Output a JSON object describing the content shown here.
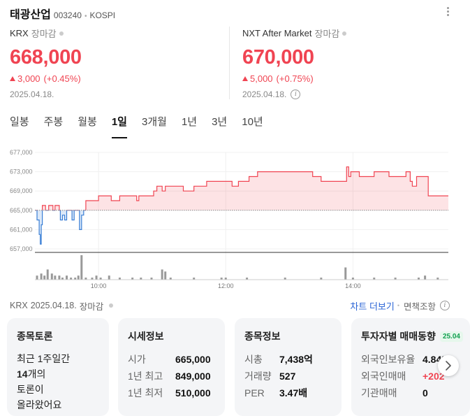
{
  "header": {
    "name": "태광산업",
    "code": "003240",
    "market": "KOSPI",
    "more_icon": "more-vertical-icon"
  },
  "krx": {
    "label": "KRX",
    "status": "장마감",
    "price": "668,000",
    "change": "3,000",
    "change_pct": "(+0.45%)",
    "date": "2025.04.18."
  },
  "nxt": {
    "label": "NXT After Market",
    "status": "장마감",
    "price": "670,000",
    "change": "5,000",
    "change_pct": "(+0.75%)",
    "date": "2025.04.18.",
    "info_icon": "i"
  },
  "tabs": [
    {
      "label": "일봉"
    },
    {
      "label": "주봉"
    },
    {
      "label": "월봉"
    },
    {
      "label": "1일",
      "active": true
    },
    {
      "label": "3개월"
    },
    {
      "label": "1년"
    },
    {
      "label": "3년"
    },
    {
      "label": "10년"
    }
  ],
  "colors": {
    "up": "#f04452",
    "down": "#3a7fd6",
    "link": "#2a64d6"
  },
  "chart_data": {
    "type": "line",
    "y_ticks": [
      "677,000",
      "673,000",
      "669,000",
      "665,000",
      "661,000",
      "657,000"
    ],
    "ylim": [
      657000,
      677000
    ],
    "baseline": 665000,
    "x_ticks": [
      "10:00",
      "12:00",
      "14:00"
    ],
    "x_tick_minutes": [
      60,
      180,
      300
    ],
    "session_minutes": [
      0,
      390
    ],
    "price_series": [
      [
        0,
        665000
      ],
      [
        2,
        663000
      ],
      [
        4,
        660000
      ],
      [
        5,
        658000
      ],
      [
        6,
        662000
      ],
      [
        7,
        666000
      ],
      [
        9,
        666000
      ],
      [
        10,
        665000
      ],
      [
        12,
        665000
      ],
      [
        13,
        666000
      ],
      [
        16,
        666000
      ],
      [
        17,
        665000
      ],
      [
        19,
        666000
      ],
      [
        22,
        666000
      ],
      [
        23,
        665000
      ],
      [
        24,
        663000
      ],
      [
        26,
        664000
      ],
      [
        28,
        663000
      ],
      [
        30,
        665000
      ],
      [
        33,
        665000
      ],
      [
        35,
        663000
      ],
      [
        37,
        665000
      ],
      [
        40,
        665000
      ],
      [
        42,
        661000
      ],
      [
        44,
        664000
      ],
      [
        46,
        665000
      ],
      [
        48,
        667000
      ],
      [
        56,
        667000
      ],
      [
        60,
        668000
      ],
      [
        68,
        668000
      ],
      [
        72,
        667000
      ],
      [
        78,
        667000
      ],
      [
        80,
        668000
      ],
      [
        95,
        668000
      ],
      [
        96,
        667000
      ],
      [
        98,
        668000
      ],
      [
        110,
        668000
      ],
      [
        112,
        669000
      ],
      [
        115,
        670000
      ],
      [
        120,
        669000
      ],
      [
        123,
        670000
      ],
      [
        138,
        670000
      ],
      [
        140,
        669000
      ],
      [
        148,
        669000
      ],
      [
        150,
        670000
      ],
      [
        160,
        670000
      ],
      [
        162,
        671000
      ],
      [
        185,
        671000
      ],
      [
        186,
        670000
      ],
      [
        190,
        670000
      ],
      [
        192,
        671000
      ],
      [
        200,
        671000
      ],
      [
        202,
        672000
      ],
      [
        208,
        672000
      ],
      [
        210,
        673000
      ],
      [
        260,
        673000
      ],
      [
        262,
        672000
      ],
      [
        268,
        672000
      ],
      [
        270,
        671000
      ],
      [
        292,
        671000
      ],
      [
        294,
        674000
      ],
      [
        296,
        672000
      ],
      [
        298,
        673000
      ],
      [
        303,
        673000
      ],
      [
        306,
        672000
      ],
      [
        318,
        672000
      ],
      [
        320,
        673000
      ],
      [
        332,
        673000
      ],
      [
        334,
        672000
      ],
      [
        347,
        672000
      ],
      [
        350,
        673000
      ],
      [
        354,
        671000
      ],
      [
        356,
        670000
      ],
      [
        360,
        672000
      ],
      [
        369,
        672000
      ],
      [
        371,
        668000
      ],
      [
        390,
        668000
      ]
    ],
    "volume_bars": [
      [
        2,
        2
      ],
      [
        6,
        3
      ],
      [
        9,
        2
      ],
      [
        12,
        5
      ],
      [
        16,
        3
      ],
      [
        19,
        2
      ],
      [
        23,
        2
      ],
      [
        26,
        1
      ],
      [
        30,
        2
      ],
      [
        34,
        1
      ],
      [
        38,
        1
      ],
      [
        41,
        2
      ],
      [
        44,
        12
      ],
      [
        48,
        1
      ],
      [
        54,
        1
      ],
      [
        58,
        2
      ],
      [
        62,
        1
      ],
      [
        70,
        2
      ],
      [
        80,
        1
      ],
      [
        92,
        1
      ],
      [
        100,
        1
      ],
      [
        110,
        1
      ],
      [
        120,
        5
      ],
      [
        123,
        4
      ],
      [
        128,
        1
      ],
      [
        150,
        1
      ],
      [
        176,
        1
      ],
      [
        180,
        1
      ],
      [
        200,
        1
      ],
      [
        236,
        1
      ],
      [
        270,
        1
      ],
      [
        293,
        6
      ],
      [
        300,
        1
      ],
      [
        320,
        1
      ],
      [
        340,
        1
      ],
      [
        362,
        1
      ],
      [
        368,
        2
      ],
      [
        380,
        1
      ]
    ],
    "volume_max": 12
  },
  "footer": {
    "market": "KRX",
    "date": "2025.04.18.",
    "status": "장마감",
    "more_chart": "차트 더보기",
    "disclaimer": "면책조항"
  },
  "cards": {
    "discussion": {
      "title": "종목토론",
      "line1": "최근 1주일간",
      "count": "14개의",
      "line3": "토론이",
      "line4": "올라왔어요"
    },
    "quote": {
      "title": "시세정보",
      "rows": [
        {
          "label": "시가",
          "value": "665,000"
        },
        {
          "label": "1년 최고",
          "value": "849,000"
        },
        {
          "label": "1년 최저",
          "value": "510,000"
        }
      ]
    },
    "info": {
      "title": "종목정보",
      "rows": [
        {
          "label": "시총",
          "value": "7,438억"
        },
        {
          "label": "거래량",
          "value": "527"
        },
        {
          "label": "PER",
          "value": "3.47배"
        }
      ]
    },
    "investor": {
      "title": "투자자별 매매동향",
      "badge": "25.04",
      "rows": [
        {
          "label": "외국인보유율",
          "value": "4.84%"
        },
        {
          "label": "외국인매매",
          "value": "+202"
        },
        {
          "label": "기관매매",
          "value": "0"
        }
      ]
    }
  }
}
